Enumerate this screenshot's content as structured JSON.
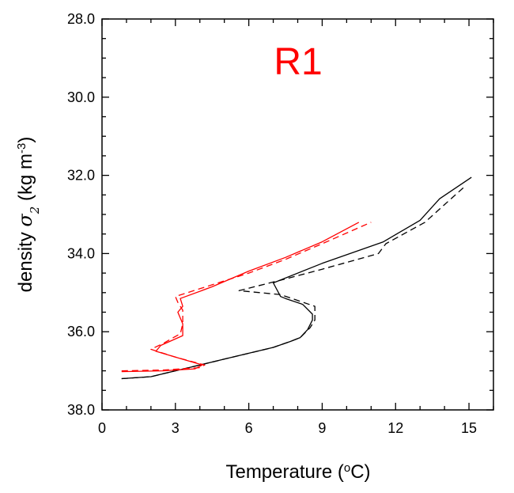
{
  "chart_data": {
    "type": "line",
    "annotation": "R1",
    "annotation_color": "#ff0000",
    "xlabel": {
      "prefix": "Temperature (",
      "sup": "o",
      "suffix": "C)"
    },
    "ylabel": {
      "prefix": "density ",
      "symbol": "σ",
      "sub": "2",
      "unit_open": " (kg m",
      "sup": "-3",
      "unit_close": ")"
    },
    "xlim": [
      0,
      16
    ],
    "ylim": [
      28,
      38
    ],
    "y_inverted": true,
    "x_ticks": [
      0,
      3,
      6,
      9,
      12,
      15
    ],
    "x_tick_labels": [
      "0",
      "3",
      "6",
      "9",
      "12",
      "15"
    ],
    "y_ticks": [
      28,
      30,
      32,
      34,
      36,
      38
    ],
    "y_tick_labels": [
      "28.0",
      "30.0",
      "32.0",
      "34.0",
      "36.0",
      "38.0"
    ],
    "grid": false,
    "series": [
      {
        "color": "#000000",
        "dash": "solid",
        "points": [
          [
            0.8,
            37.2
          ],
          [
            2.0,
            37.15
          ],
          [
            3.0,
            37.0
          ],
          [
            4.0,
            36.85
          ],
          [
            5.0,
            36.7
          ],
          [
            6.0,
            36.55
          ],
          [
            7.0,
            36.4
          ],
          [
            7.7,
            36.25
          ],
          [
            8.1,
            36.15
          ],
          [
            8.4,
            35.95
          ],
          [
            8.6,
            35.7
          ],
          [
            8.6,
            35.55
          ],
          [
            8.2,
            35.3
          ],
          [
            7.5,
            35.15
          ],
          [
            7.3,
            35.1
          ],
          [
            7.0,
            34.75
          ],
          [
            9.0,
            34.25
          ],
          [
            11.5,
            33.7
          ],
          [
            13.0,
            33.15
          ],
          [
            13.8,
            32.6
          ],
          [
            15.1,
            32.05
          ]
        ]
      },
      {
        "color": "#000000",
        "dash": "dashed",
        "points": [
          [
            0.8,
            37.2
          ],
          [
            2.0,
            37.15
          ],
          [
            3.0,
            37.0
          ],
          [
            4.0,
            36.85
          ],
          [
            5.0,
            36.7
          ],
          [
            6.0,
            36.55
          ],
          [
            7.0,
            36.4
          ],
          [
            7.7,
            36.25
          ],
          [
            8.1,
            36.15
          ],
          [
            8.5,
            35.9
          ],
          [
            8.7,
            35.7
          ],
          [
            8.7,
            35.35
          ],
          [
            7.3,
            35.05
          ],
          [
            5.6,
            34.95
          ],
          [
            7.5,
            34.65
          ],
          [
            9.0,
            34.4
          ],
          [
            11.3,
            34.0
          ],
          [
            11.6,
            33.75
          ],
          [
            13.2,
            33.2
          ],
          [
            14.0,
            32.75
          ],
          [
            14.8,
            32.3
          ]
        ]
      },
      {
        "color": "#ff0000",
        "dash": "solid",
        "points": [
          [
            0.8,
            37.02
          ],
          [
            2.5,
            37.0
          ],
          [
            3.8,
            36.95
          ],
          [
            4.1,
            36.85
          ],
          [
            3.0,
            36.65
          ],
          [
            2.2,
            36.5
          ],
          [
            2.4,
            36.35
          ],
          [
            3.3,
            36.1
          ],
          [
            3.3,
            35.8
          ],
          [
            3.1,
            35.5
          ],
          [
            3.3,
            35.35
          ],
          [
            3.2,
            35.15
          ],
          [
            4.5,
            34.85
          ],
          [
            6.0,
            34.45
          ],
          [
            7.5,
            34.1
          ],
          [
            9.0,
            33.7
          ],
          [
            10.5,
            33.2
          ]
        ]
      },
      {
        "color": "#ff0000",
        "dash": "dashed",
        "points": [
          [
            0.8,
            37.0
          ],
          [
            2.5,
            36.98
          ],
          [
            4.0,
            36.92
          ],
          [
            4.2,
            36.85
          ],
          [
            3.0,
            36.65
          ],
          [
            2.0,
            36.45
          ],
          [
            2.5,
            36.3
          ],
          [
            3.2,
            36.05
          ],
          [
            3.3,
            35.8
          ],
          [
            3.3,
            35.45
          ],
          [
            3.1,
            35.25
          ],
          [
            3.0,
            35.1
          ],
          [
            4.5,
            34.8
          ],
          [
            6.0,
            34.5
          ],
          [
            7.5,
            34.15
          ],
          [
            9.0,
            33.75
          ],
          [
            11.0,
            33.2
          ]
        ]
      }
    ]
  }
}
